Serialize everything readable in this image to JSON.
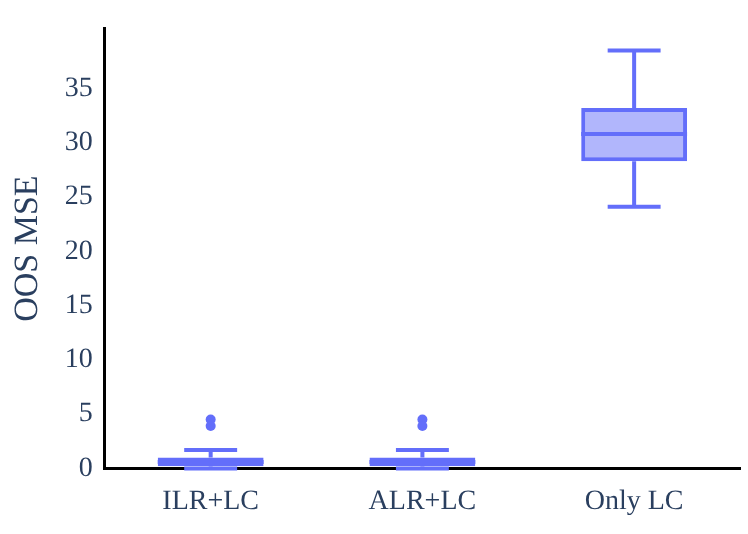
{
  "chart_data": {
    "type": "box",
    "ylabel": "OOS MSE",
    "categories": [
      "ILR+LC",
      "ALR+LC",
      "Only LC"
    ],
    "series": [
      {
        "color": "#636efa",
        "boxes": [
          {
            "low": 0,
            "q1": 0.2,
            "median": 0.6,
            "q3": 1.0,
            "high": 1.7,
            "outliers": [
              3.9,
              4.5
            ]
          },
          {
            "low": 0,
            "q1": 0.2,
            "median": 0.6,
            "q3": 1.0,
            "high": 1.7,
            "outliers": [
              3.9,
              4.5
            ]
          },
          {
            "low": 24.1,
            "q1": 28.3,
            "median": 30.8,
            "q3": 33.2,
            "high": 38.5
          }
        ]
      }
    ],
    "ylim": [
      0,
      40.5
    ],
    "yticks": [
      0,
      5,
      10,
      15,
      20,
      25,
      30,
      35
    ],
    "grid": false,
    "legend": false
  }
}
